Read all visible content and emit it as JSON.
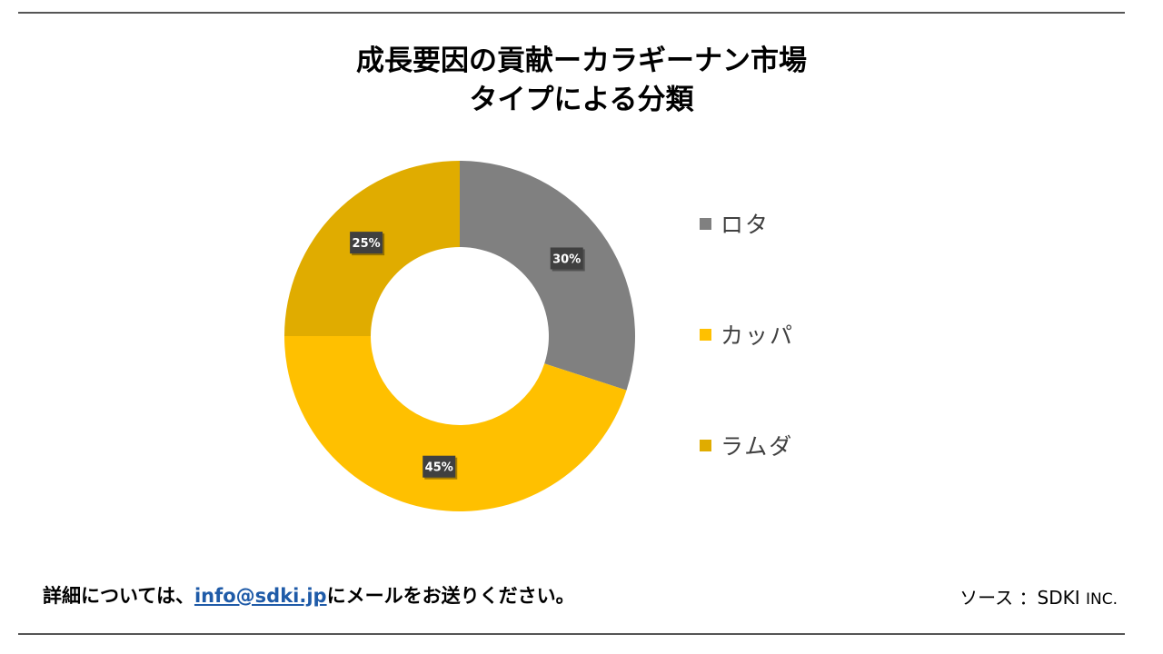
{
  "title_line1": "成長要因の貢献ーカラギーナン市場",
  "title_line2": "タイプによる分類",
  "chart_data": {
    "type": "pie",
    "variant": "donut",
    "categories": [
      "ロタ",
      "カッパ",
      "ラムダ"
    ],
    "values": [
      30,
      45,
      25
    ],
    "data_labels": [
      "30%",
      "45%",
      "25%"
    ],
    "colors": [
      "#808080",
      "#FFC000",
      "#E0AC00"
    ],
    "legend_position": "right"
  },
  "footer": {
    "prefix": "詳細については、",
    "email": "info@sdki.jp",
    "suffix": "にメールをお送りください。",
    "source_label": "ソース ：SDKI ",
    "source_suffix": "INC."
  }
}
